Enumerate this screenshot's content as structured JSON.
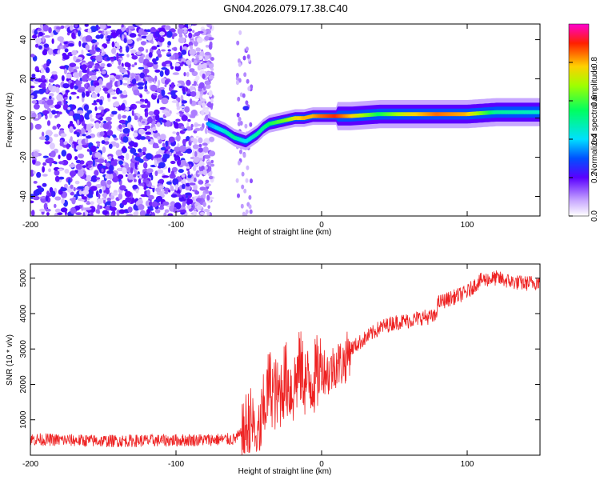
{
  "title": "GN04.2026.079.17.38.C40",
  "chart_data": [
    {
      "type": "heatmap",
      "xlabel": "Height of straight line (km)",
      "ylabel": "Frequency (Hz)",
      "xlim": [
        -200,
        150
      ],
      "ylim": [
        -50,
        48
      ],
      "xticks": [
        -200,
        -100,
        0,
        100
      ],
      "xtick_labels": [
        "-200",
        "-100",
        "0",
        "100"
      ],
      "yticks": [
        -40,
        -20,
        0,
        20,
        40
      ],
      "ytick_labels": [
        "-40",
        "-20",
        "0",
        "20",
        "40"
      ],
      "colorbar": {
        "label": "Normalized spectral amplitude",
        "range": [
          0,
          1
        ],
        "ticks": [
          0.0,
          0.2,
          0.4,
          0.6,
          0.8
        ],
        "tick_labels": [
          "0.0",
          "0.2",
          "0.4",
          "0.6",
          "0.8"
        ],
        "colormap": [
          "#ffffff",
          "#a070ff",
          "#3000ff",
          "#0060ff",
          "#00e0ff",
          "#00ff60",
          "#a0ff00",
          "#ffd000",
          "#ff2000",
          "#ff00d0"
        ]
      },
      "ridge": {
        "x": [
          -78,
          -72,
          -66,
          -60,
          -56,
          -52,
          -48,
          -44,
          -40,
          -36,
          -30,
          -24,
          -18,
          -12,
          -6,
          0,
          10,
          20,
          40,
          60,
          80,
          100,
          120,
          150
        ],
        "y": [
          -3,
          -5,
          -7,
          -10,
          -11,
          -12,
          -10,
          -8,
          -5,
          -3,
          -2,
          -1,
          0,
          0,
          1,
          1,
          1,
          1,
          2,
          2,
          2,
          2,
          3,
          3
        ],
        "amplitude": [
          0.35,
          0.4,
          0.45,
          0.5,
          0.45,
          0.4,
          0.45,
          0.5,
          0.5,
          0.55,
          0.6,
          0.65,
          0.75,
          0.8,
          0.8,
          0.85,
          0.9,
          0.8,
          0.55,
          0.75,
          0.85,
          0.8,
          0.5,
          0.45
        ]
      },
      "noise_region": {
        "x_range": [
          -200,
          -75
        ],
        "amplitude_range": [
          0.05,
          0.25
        ]
      }
    },
    {
      "type": "line",
      "xlabel": "Height of straight line (km)",
      "ylabel": "SNR (10 * v/v)",
      "xlim": [
        -200,
        150
      ],
      "ylim": [
        0,
        5400
      ],
      "xticks": [
        -200,
        -100,
        0,
        100
      ],
      "xtick_labels": [
        "-200",
        "-100",
        "0",
        "100"
      ],
      "yticks": [
        1000,
        2000,
        3000,
        4000,
        5000
      ],
      "ytick_labels": [
        "1000",
        "2000",
        "3000",
        "4000",
        "5000"
      ],
      "color": "#ee2222",
      "series": [
        {
          "name": "SNR",
          "x": [
            -200,
            -150,
            -100,
            -60,
            -55,
            -48,
            -44,
            -40,
            -36,
            -30,
            -25,
            -20,
            -15,
            -10,
            -5,
            0,
            5,
            10,
            15,
            20,
            30,
            40,
            50,
            60,
            70,
            78,
            80,
            90,
            100,
            105,
            110,
            120,
            130,
            140,
            150
          ],
          "values": [
            450,
            400,
            420,
            450,
            600,
            900,
            400,
            1200,
            2000,
            1600,
            2200,
            1800,
            2500,
            2000,
            2200,
            2500,
            2300,
            2600,
            2600,
            3000,
            3300,
            3600,
            3750,
            3800,
            3900,
            3900,
            4300,
            4450,
            4600,
            4800,
            4950,
            5000,
            4900,
            4850,
            4900
          ]
        }
      ]
    }
  ]
}
